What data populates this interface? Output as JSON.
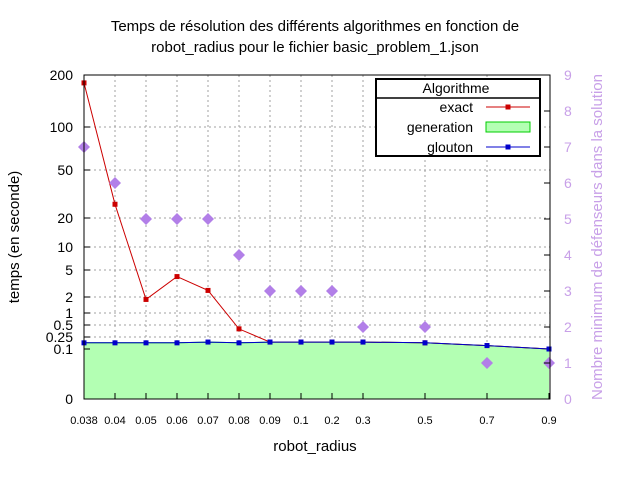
{
  "chart_data": {
    "type": "line",
    "title_line1": "Temps de résolution des différents algorithmes en fonction de",
    "title_line2": "robot_radius pour le fichier basic_problem_1.json",
    "xlabel": "robot_radius",
    "ylabel": "temps (en seconde)",
    "y2label": "Nombre minimum de défenseurs dans la solution",
    "x_categories": [
      "0.038",
      "0.04",
      "0.05",
      "0.06",
      "0.07",
      "0.08",
      "0.09",
      "0.1",
      "0.2",
      "0.3",
      "0.5",
      "0.7",
      "0.9"
    ],
    "y_ticks": [
      "0",
      "0.1",
      "0.25",
      "0.5",
      "1",
      "2",
      "5",
      "10",
      "20",
      "50",
      "100",
      "200"
    ],
    "y2_ticks": [
      "0",
      "1",
      "2",
      "3",
      "4",
      "5",
      "6",
      "7",
      "8",
      "9"
    ],
    "y2lim": [
      0,
      9
    ],
    "grid": true,
    "legend": {
      "title": "Algorithme",
      "placement": "top-right",
      "entries": [
        "exact",
        "generation",
        "glouton"
      ]
    },
    "colors": {
      "exact": "#cc0000",
      "generation_fill": "#b3ffb3",
      "generation_stroke": "#00cc00",
      "glouton": "#0000cc",
      "defenders": "#b27fe8",
      "y2_axis": "#c8a0e8",
      "grid": "#a0a0a0"
    },
    "series": [
      {
        "name": "exact",
        "values": [
          180,
          26,
          1.8,
          4,
          2.5,
          0.4,
          0.17,
          0.17,
          0.17,
          0.17,
          0.16,
          0.13,
          0.1
        ]
      },
      {
        "name": "generation",
        "values": [
          0.16,
          0.16,
          0.16,
          0.16,
          0.17,
          0.16,
          0.17,
          0.17,
          0.17,
          0.17,
          0.16,
          0.13,
          0.1
        ]
      },
      {
        "name": "glouton",
        "values": [
          0.16,
          0.16,
          0.16,
          0.16,
          0.17,
          0.16,
          0.17,
          0.17,
          0.17,
          0.17,
          0.16,
          0.13,
          0.1
        ]
      }
    ],
    "defenders": [
      7,
      6,
      5,
      5,
      5,
      4,
      3,
      3,
      3,
      2,
      2,
      1,
      1
    ]
  }
}
